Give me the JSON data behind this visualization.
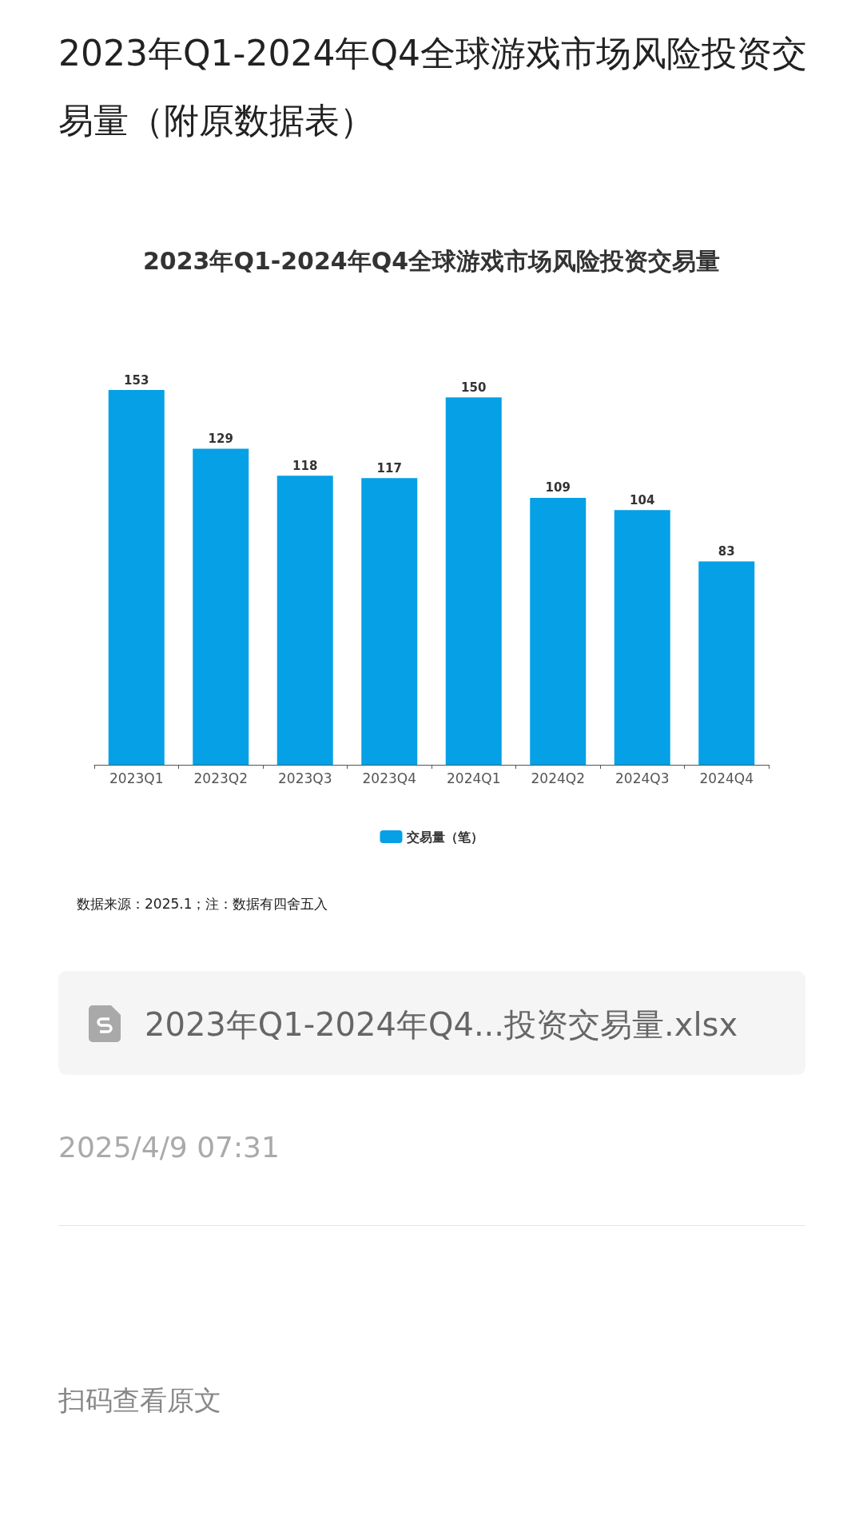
{
  "chart_data": {
    "type": "bar",
    "title": "2023年Q1-2024年Q4全球游戏市场风险投资交易量（附原数据表）",
    "subtitle": "2023年Q1-2024年Q4全球游戏市场风险投资交易量",
    "categories": [
      "2023Q1",
      "2023Q2",
      "2023Q3",
      "2023Q4",
      "2024Q1",
      "2024Q2",
      "2024Q3",
      "2024Q4"
    ],
    "series": [
      {
        "name": "交易量（笔）",
        "color": "#05a0e6",
        "values": [
          153,
          129,
          118,
          117,
          150,
          109,
          104,
          83
        ]
      }
    ],
    "data_labels": true,
    "legend": "bottom",
    "grid": false,
    "annotations": [
      "数据来源：2025.1；注：数据有四舍五入",
      "2023年Q1-2024年Q4...投资交易量.xlsx",
      "2025/4/9 07:31",
      "扫码查看原文"
    ]
  }
}
